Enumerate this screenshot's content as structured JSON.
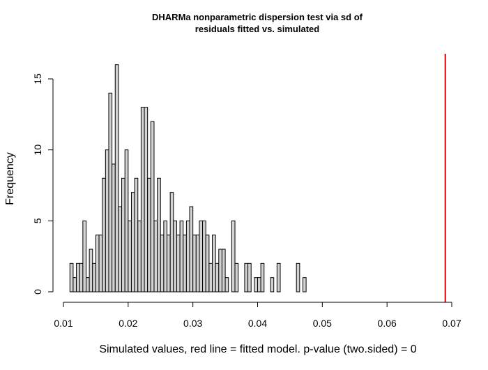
{
  "chart_data": {
    "type": "bar",
    "title_line1": "DHARMa nonparametric dispersion test via sd of",
    "title_line2": "residuals fitted vs. simulated",
    "xlabel": "Simulated values, red line = fitted model. p-value (two.sided) = 0",
    "ylabel": "Frequency",
    "xlim": [
      0.01,
      0.07
    ],
    "ylim": [
      0,
      16
    ],
    "bin_width": 0.0005,
    "first_bin_start": 0.011,
    "values": [
      2,
      1,
      2,
      2,
      5,
      1,
      3,
      2,
      4,
      4,
      8,
      10,
      14,
      9,
      16,
      6,
      8,
      10,
      5,
      7,
      8,
      5,
      13,
      13,
      8,
      12,
      5,
      8,
      4,
      5,
      4,
      7,
      5,
      4,
      5,
      4,
      5,
      6,
      4,
      4,
      5,
      5,
      4,
      2,
      4,
      2,
      3,
      3,
      1,
      0,
      5,
      2,
      0,
      0,
      2,
      2,
      0,
      1,
      1,
      2,
      0,
      0,
      1,
      0,
      2,
      0,
      0,
      0,
      0,
      0,
      2,
      0,
      1,
      0,
      0,
      0,
      0,
      0,
      0,
      0,
      0
    ],
    "xticks": [
      {
        "value": 0.01,
        "label": "0.01"
      },
      {
        "value": 0.02,
        "label": "0.02"
      },
      {
        "value": 0.03,
        "label": "0.03"
      },
      {
        "value": 0.04,
        "label": "0.04"
      },
      {
        "value": 0.05,
        "label": "0.05"
      },
      {
        "value": 0.06,
        "label": "0.06"
      },
      {
        "value": 0.07,
        "label": "0.07"
      }
    ],
    "yticks": [
      {
        "value": 0,
        "label": "0"
      },
      {
        "value": 5,
        "label": "5"
      },
      {
        "value": 10,
        "label": "10"
      },
      {
        "value": 15,
        "label": "15"
      }
    ],
    "observed_value": 0.069,
    "observed_line_color": "#dd0000",
    "bar_fill": "#d3d3d3",
    "grid": false,
    "legend": "none"
  }
}
